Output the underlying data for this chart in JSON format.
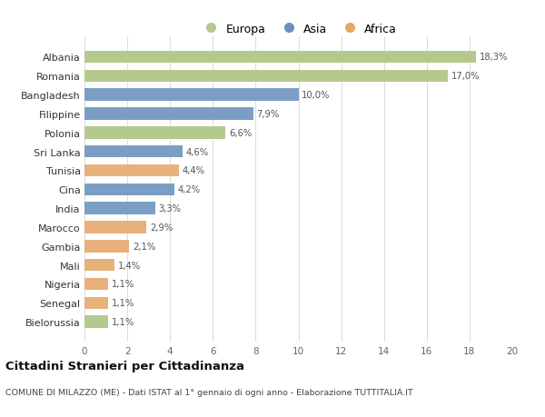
{
  "countries": [
    "Albania",
    "Romania",
    "Bangladesh",
    "Filippine",
    "Polonia",
    "Sri Lanka",
    "Tunisia",
    "Cina",
    "India",
    "Marocco",
    "Gambia",
    "Mali",
    "Nigeria",
    "Senegal",
    "Bielorussia"
  ],
  "values": [
    18.3,
    17.0,
    10.0,
    7.9,
    6.6,
    4.6,
    4.4,
    4.2,
    3.3,
    2.9,
    2.1,
    1.4,
    1.1,
    1.1,
    1.1
  ],
  "labels": [
    "18,3%",
    "17,0%",
    "10,0%",
    "7,9%",
    "6,6%",
    "4,6%",
    "4,4%",
    "4,2%",
    "3,3%",
    "2,9%",
    "2,1%",
    "1,4%",
    "1,1%",
    "1,1%",
    "1,1%"
  ],
  "continents": [
    "Europa",
    "Europa",
    "Asia",
    "Asia",
    "Europa",
    "Asia",
    "Africa",
    "Asia",
    "Asia",
    "Africa",
    "Africa",
    "Africa",
    "Africa",
    "Africa",
    "Europa"
  ],
  "colors": {
    "Europa": "#b5c98e",
    "Asia": "#7b9fc4",
    "Africa": "#e8b07a"
  },
  "legend_colors": {
    "Europa": "#b5c98e",
    "Asia": "#6b90c0",
    "Africa": "#e8a864"
  },
  "xlim": [
    0,
    20
  ],
  "xticks": [
    0,
    2,
    4,
    6,
    8,
    10,
    12,
    14,
    16,
    18,
    20
  ],
  "title": "Cittadini Stranieri per Cittadinanza",
  "subtitle": "COMUNE DI MILAZZO (ME) - Dati ISTAT al 1° gennaio di ogni anno - Elaborazione TUTTITALIA.IT",
  "bg_color": "#ffffff",
  "grid_color": "#dddddd"
}
